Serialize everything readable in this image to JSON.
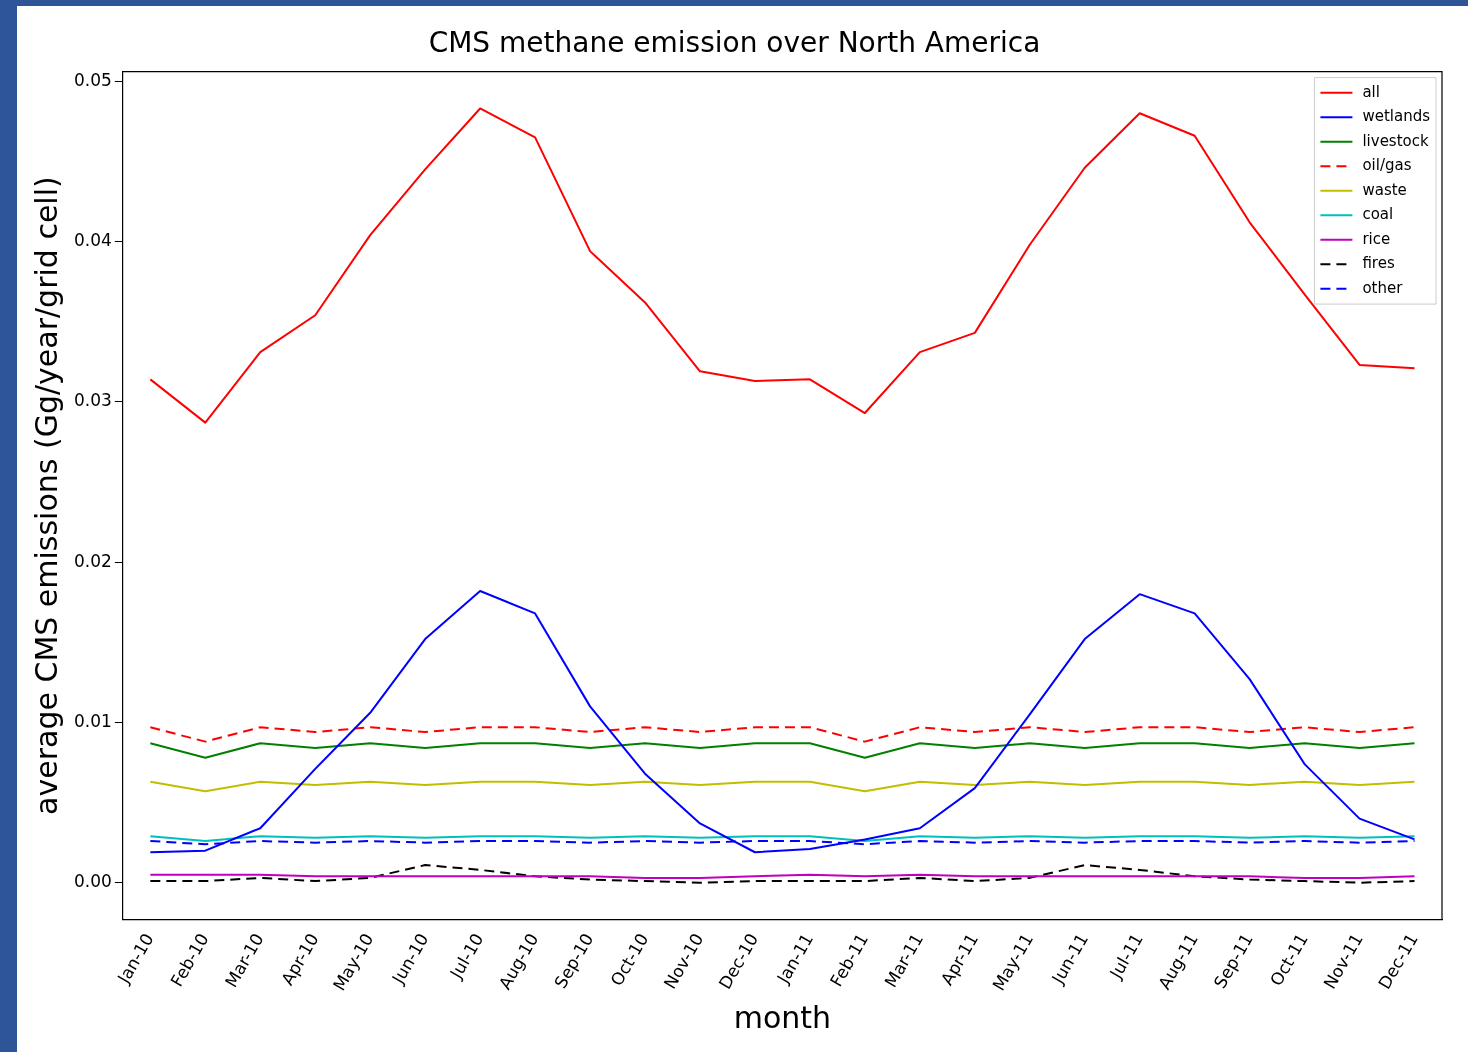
{
  "chart_data": {
    "type": "line",
    "title": "CMS methane emission over North America",
    "xlabel": "month",
    "ylabel": "average CMS emissions (Gg/year/grid cell)",
    "categories": [
      "Jan-10",
      "Feb-10",
      "Mar-10",
      "Apr-10",
      "May-10",
      "Jun-10",
      "Jul-10",
      "Aug-10",
      "Sep-10",
      "Oct-10",
      "Nov-10",
      "Dec-10",
      "Jan-11",
      "Feb-11",
      "Mar-11",
      "Apr-11",
      "May-11",
      "Jun-11",
      "Jul-11",
      "Aug-11",
      "Sep-11",
      "Oct-11",
      "Nov-11",
      "Dec-11"
    ],
    "series": [
      {
        "name": "all",
        "color": "#ff0000",
        "line_style": "solid",
        "values": [
          0.0314,
          0.0287,
          0.0331,
          0.0354,
          0.0404,
          0.0445,
          0.0483,
          0.0465,
          0.0394,
          0.0362,
          0.0319,
          0.0313,
          0.0314,
          0.0293,
          0.0331,
          0.0343,
          0.0398,
          0.0446,
          0.048,
          0.0466,
          0.0412,
          0.0367,
          0.0323,
          0.0321
        ]
      },
      {
        "name": "wetlands",
        "color": "#0000ff",
        "line_style": "solid",
        "values": [
          0.0019,
          0.002,
          0.0034,
          0.0071,
          0.0106,
          0.0152,
          0.0182,
          0.0168,
          0.011,
          0.0068,
          0.0037,
          0.0019,
          0.0021,
          0.0027,
          0.0034,
          0.0059,
          0.0105,
          0.0152,
          0.018,
          0.0168,
          0.0127,
          0.0074,
          0.004,
          0.0027
        ]
      },
      {
        "name": "livestock",
        "color": "#008000",
        "line_style": "solid",
        "values": [
          0.0087,
          0.0078,
          0.0087,
          0.0084,
          0.0087,
          0.0084,
          0.0087,
          0.0087,
          0.0084,
          0.0087,
          0.0084,
          0.0087,
          0.0087,
          0.0078,
          0.0087,
          0.0084,
          0.0087,
          0.0084,
          0.0087,
          0.0087,
          0.0084,
          0.0087,
          0.0084,
          0.0087
        ]
      },
      {
        "name": "oil/gas",
        "color": "#ff0000",
        "line_style": "dashed",
        "values": [
          0.0097,
          0.0088,
          0.0097,
          0.0094,
          0.0097,
          0.0094,
          0.0097,
          0.0097,
          0.0094,
          0.0097,
          0.0094,
          0.0097,
          0.0097,
          0.0088,
          0.0097,
          0.0094,
          0.0097,
          0.0094,
          0.0097,
          0.0097,
          0.0094,
          0.0097,
          0.0094,
          0.0097
        ]
      },
      {
        "name": "waste",
        "color": "#bfbf00",
        "line_style": "solid",
        "values": [
          0.0063,
          0.0057,
          0.0063,
          0.0061,
          0.0063,
          0.0061,
          0.0063,
          0.0063,
          0.0061,
          0.0063,
          0.0061,
          0.0063,
          0.0063,
          0.0057,
          0.0063,
          0.0061,
          0.0063,
          0.0061,
          0.0063,
          0.0063,
          0.0061,
          0.0063,
          0.0061,
          0.0063
        ]
      },
      {
        "name": "coal",
        "color": "#00bfbf",
        "line_style": "solid",
        "values": [
          0.0029,
          0.0026,
          0.0029,
          0.0028,
          0.0029,
          0.0028,
          0.0029,
          0.0029,
          0.0028,
          0.0029,
          0.0028,
          0.0029,
          0.0029,
          0.0026,
          0.0029,
          0.0028,
          0.0029,
          0.0028,
          0.0029,
          0.0029,
          0.0028,
          0.0029,
          0.0028,
          0.0029
        ]
      },
      {
        "name": "rice",
        "color": "#bf00bf",
        "line_style": "solid",
        "values": [
          0.0005,
          0.0005,
          0.0005,
          0.0004,
          0.0004,
          0.0004,
          0.0004,
          0.0004,
          0.0004,
          0.0003,
          0.0003,
          0.0004,
          0.0005,
          0.0004,
          0.0005,
          0.0004,
          0.0004,
          0.0004,
          0.0004,
          0.0004,
          0.0004,
          0.0003,
          0.0003,
          0.0004
        ]
      },
      {
        "name": "fires",
        "color": "#000000",
        "line_style": "dashed",
        "values": [
          0.0001,
          0.0001,
          0.0003,
          0.0001,
          0.0003,
          0.0011,
          0.0008,
          0.0004,
          0.0002,
          0.0001,
          0.0,
          0.0001,
          0.0001,
          0.0001,
          0.0003,
          0.0001,
          0.0003,
          0.0011,
          0.0008,
          0.0004,
          0.0002,
          0.0001,
          0.0,
          0.0001
        ]
      },
      {
        "name": "other",
        "color": "#0000ff",
        "line_style": "dashed",
        "values": [
          0.0026,
          0.0024,
          0.0026,
          0.0025,
          0.0026,
          0.0025,
          0.0026,
          0.0026,
          0.0025,
          0.0026,
          0.0025,
          0.0026,
          0.0026,
          0.0024,
          0.0026,
          0.0025,
          0.0026,
          0.0025,
          0.0026,
          0.0026,
          0.0025,
          0.0026,
          0.0025,
          0.0026
        ]
      }
    ],
    "ylim": [
      -0.0023,
      0.0506
    ],
    "yticks": [
      {
        "value": 0,
        "label": "0.00"
      },
      {
        "value": 0.01,
        "label": "0.01"
      },
      {
        "value": 0.02,
        "label": "0.02"
      },
      {
        "value": 0.03,
        "label": "0.03"
      },
      {
        "value": 0.04,
        "label": "0.04"
      },
      {
        "value": 0.05,
        "label": "0.05"
      }
    ],
    "legend": "top right",
    "marker": "none",
    "grid": false
  }
}
